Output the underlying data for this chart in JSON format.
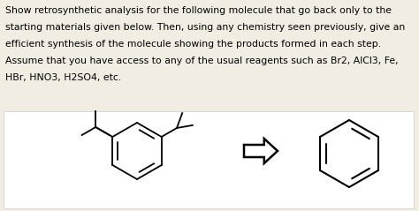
{
  "background_color": "#f2ede3",
  "text_color": "#000000",
  "text_lines": [
    "Show retrosynthetic analysis for the following molecule that go back only to the",
    "starting materials given below. Then, using any chemistry seen previously, give an",
    "efficient synthesis of the molecule showing the products formed in each step.",
    "Assume that you have access to any of the usual reagents such as Br2, AlCl3, Fe,",
    "HBr, HNO3, H2SO4, etc."
  ],
  "text_fontsize": 7.8,
  "panel_bg": "#ffffff"
}
